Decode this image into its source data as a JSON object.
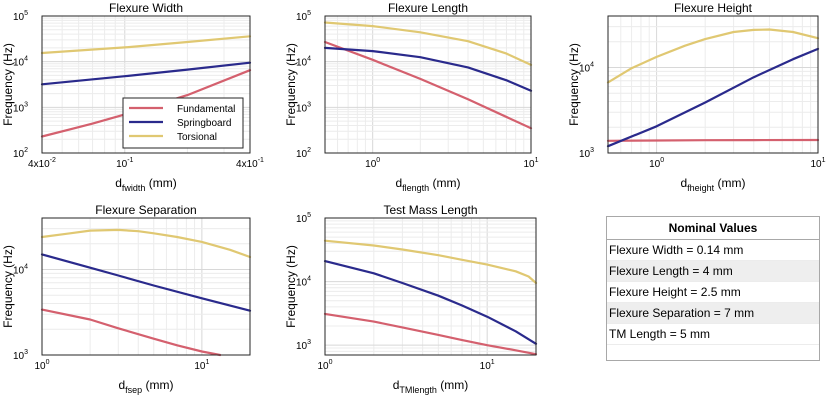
{
  "colors": {
    "fundamental": "#d4606e",
    "springboard": "#2a2a8c",
    "torsional": "#e0c872"
  },
  "legend": [
    "Fundamental",
    "Springboard",
    "Torsional"
  ],
  "chart_data": [
    {
      "id": "p1",
      "type": "line",
      "title": "Flexure Width",
      "xlabel": {
        "main": "d",
        "sub": "fwidth",
        "unit": "(mm)"
      },
      "ylabel": "Frequency (Hz)",
      "xscale": "log",
      "yscale": "log",
      "xlim": [
        0.04,
        0.4
      ],
      "ylim": [
        100,
        100000
      ],
      "xticks": [
        {
          "v": 0.04,
          "t": "4x10",
          "e": "-2"
        },
        {
          "v": 0.1,
          "t": "10",
          "e": "-1"
        },
        {
          "v": 0.4,
          "t": "4x10",
          "e": "-1"
        }
      ],
      "yticks": [
        {
          "v": 100,
          "t": "10",
          "e": "2"
        },
        {
          "v": 1000,
          "t": "10",
          "e": "3"
        },
        {
          "v": 10000,
          "t": "10",
          "e": "4"
        },
        {
          "v": 100000,
          "t": "10",
          "e": "5"
        }
      ],
      "legend_position": "inside-lower-center",
      "series": [
        {
          "name": "Fundamental",
          "x": [
            0.04,
            0.07,
            0.1,
            0.2,
            0.4
          ],
          "y": [
            230,
            440,
            700,
            1850,
            6500
          ]
        },
        {
          "name": "Springboard",
          "x": [
            0.04,
            0.1,
            0.2,
            0.4
          ],
          "y": [
            3200,
            4800,
            6700,
            9500
          ]
        },
        {
          "name": "Torsional",
          "x": [
            0.04,
            0.1,
            0.2,
            0.4
          ],
          "y": [
            15500,
            20500,
            27000,
            36000
          ]
        }
      ]
    },
    {
      "id": "p2",
      "type": "line",
      "title": "Flexure Length",
      "xlabel": {
        "main": "d",
        "sub": "flength",
        "unit": "(mm)"
      },
      "ylabel": "Frequency (Hz)",
      "xscale": "log",
      "yscale": "log",
      "xlim": [
        0.5,
        10
      ],
      "ylim": [
        100,
        100000
      ],
      "xticks": [
        {
          "v": 1,
          "t": "10",
          "e": "0"
        },
        {
          "v": 10,
          "t": "10",
          "e": "1"
        }
      ],
      "yticks": [
        {
          "v": 100,
          "t": "10",
          "e": "2"
        },
        {
          "v": 1000,
          "t": "10",
          "e": "3"
        },
        {
          "v": 10000,
          "t": "10",
          "e": "4"
        },
        {
          "v": 100000,
          "t": "10",
          "e": "5"
        }
      ],
      "series": [
        {
          "name": "Fundamental",
          "x": [
            0.5,
            1,
            2,
            4,
            10
          ],
          "y": [
            27000,
            11000,
            4200,
            1500,
            350
          ]
        },
        {
          "name": "Springboard",
          "x": [
            0.5,
            1,
            2,
            4,
            7,
            10
          ],
          "y": [
            20000,
            17000,
            12500,
            7500,
            3900,
            2300
          ]
        },
        {
          "name": "Torsional",
          "x": [
            0.5,
            1,
            2,
            4,
            7,
            10
          ],
          "y": [
            72000,
            60000,
            44000,
            28000,
            15000,
            8500
          ]
        }
      ]
    },
    {
      "id": "p3",
      "type": "line",
      "title": "Flexure Height",
      "xlabel": {
        "main": "d",
        "sub": "fheight",
        "unit": "(mm)"
      },
      "ylabel": "Frequency (Hz)",
      "xscale": "log",
      "yscale": "log",
      "xlim": [
        0.5,
        10
      ],
      "ylim": [
        1000,
        40000
      ],
      "xticks": [
        {
          "v": 1,
          "t": "10",
          "e": "0"
        },
        {
          "v": 10,
          "t": "10",
          "e": "1"
        }
      ],
      "yticks": [
        {
          "v": 1000,
          "t": "10",
          "e": "3"
        },
        {
          "v": 10000,
          "t": "10",
          "e": "4"
        }
      ],
      "series": [
        {
          "name": "Fundamental",
          "x": [
            0.5,
            1,
            2,
            4,
            10
          ],
          "y": [
            1390,
            1400,
            1410,
            1415,
            1420
          ]
        },
        {
          "name": "Springboard",
          "x": [
            0.5,
            1,
            2,
            4,
            7,
            10
          ],
          "y": [
            1200,
            2050,
            3900,
            7700,
            12500,
            16500
          ]
        },
        {
          "name": "Torsional",
          "x": [
            0.5,
            0.7,
            1,
            1.5,
            2,
            3,
            4,
            5,
            7,
            10
          ],
          "y": [
            6700,
            9800,
            13300,
            18000,
            21500,
            26000,
            27500,
            27800,
            26000,
            22000
          ]
        }
      ]
    },
    {
      "id": "p4",
      "type": "line",
      "title": "Flexure Separation",
      "xlabel": {
        "main": "d",
        "sub": "fsep",
        "unit": "(mm)"
      },
      "ylabel": "Frequency (Hz)",
      "xscale": "log",
      "yscale": "log",
      "xlim": [
        1,
        20
      ],
      "ylim": [
        1000,
        40000
      ],
      "xticks": [
        {
          "v": 1,
          "t": "10",
          "e": "0"
        },
        {
          "v": 10,
          "t": "10",
          "e": "1"
        }
      ],
      "yticks": [
        {
          "v": 1000,
          "t": "10",
          "e": "3"
        },
        {
          "v": 10000,
          "t": "10",
          "e": "4"
        }
      ],
      "series": [
        {
          "name": "Fundamental",
          "x": [
            1,
            2,
            3,
            5,
            7,
            10,
            13
          ],
          "y": [
            3400,
            2600,
            2050,
            1550,
            1300,
            1100,
            1000
          ]
        },
        {
          "name": "Springboard",
          "x": [
            1,
            2,
            3,
            5,
            10,
            20
          ],
          "y": [
            15000,
            10500,
            8500,
            6500,
            4600,
            3300
          ]
        },
        {
          "name": "Torsional",
          "x": [
            1,
            1.5,
            2,
            3,
            4,
            5,
            7,
            10,
            15,
            20
          ],
          "y": [
            24000,
            26500,
            28500,
            29000,
            28000,
            26500,
            24000,
            21000,
            17000,
            14000
          ]
        }
      ]
    },
    {
      "id": "p5",
      "type": "line",
      "title": "Test Mass Length",
      "xlabel": {
        "main": "d",
        "sub": "TMlength",
        "unit": "(mm)"
      },
      "ylabel": "Frequency (Hz)",
      "xscale": "log",
      "yscale": "log",
      "xlim": [
        1,
        20
      ],
      "ylim": [
        700,
        100000
      ],
      "xticks": [
        {
          "v": 1,
          "t": "10",
          "e": "0"
        },
        {
          "v": 10,
          "t": "10",
          "e": "1"
        }
      ],
      "yticks": [
        {
          "v": 1000,
          "t": "10",
          "e": "3"
        },
        {
          "v": 10000,
          "t": "10",
          "e": "4"
        },
        {
          "v": 100000,
          "t": "10",
          "e": "5"
        }
      ],
      "series": [
        {
          "name": "Fundamental",
          "x": [
            1,
            2,
            3,
            5,
            7,
            10,
            15,
            20
          ],
          "y": [
            3100,
            2350,
            1900,
            1450,
            1200,
            1000,
            830,
            720
          ]
        },
        {
          "name": "Springboard",
          "x": [
            1,
            2,
            3,
            5,
            7,
            10,
            15,
            20
          ],
          "y": [
            21000,
            13500,
            9500,
            6000,
            4200,
            2800,
            1650,
            1050
          ]
        },
        {
          "name": "Torsional",
          "x": [
            1,
            2,
            3,
            5,
            7,
            10,
            15,
            18,
            20
          ],
          "y": [
            44000,
            37000,
            32000,
            26000,
            22000,
            18500,
            14500,
            12000,
            9500
          ]
        }
      ]
    }
  ],
  "nominal": {
    "title": "Nominal Values",
    "rows": [
      "Flexure Width = 0.14 mm",
      "Flexure Length = 4 mm",
      "Flexure Height = 2.5 mm",
      "Flexure Separation = 7 mm",
      "TM Length = 5 mm"
    ]
  }
}
